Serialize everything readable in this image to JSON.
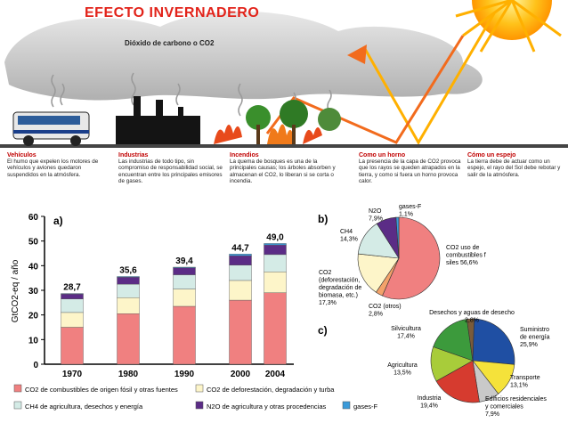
{
  "infographic": {
    "title": "EFECTO INVERNADERO",
    "cloud_label": "Dióxido de carbono o CO2",
    "captions": [
      {
        "title": "Vehículos",
        "text": "El humo que expelen los motores de vehículos y aviones quedaron suspendidos en la atmósfera."
      },
      {
        "title": "Industrias",
        "text": "Las industrias de todo tipo, sin compromiso de responsabilidad social, se encuentran entre los principales emisores de gases."
      },
      {
        "title": "Incendios",
        "text": "La quema de bosques es una de la principales causas; los árboles absorben y almacenan el CO2, lo liberan si se corta o incendia."
      },
      {
        "title": "Como un horno",
        "text": "La presencia de la capa de CO2 provoca que los rayos se queden atrapados en la tierra, y como si fuera un horno provoca calor."
      },
      {
        "title": "Cómo un espejo",
        "text": "La tierra debe de actuar como un espejo, el rayo del Sol debe rebotar y salir de la atmósfera."
      }
    ]
  },
  "colors": {
    "co2_fossil": "#f08080",
    "co2_deforest": "#fdf5c9",
    "ch4": "#d4ebe6",
    "n2o": "#5b2c86",
    "fgas": "#3a9ad9"
  },
  "chart_data": [
    {
      "type": "bar",
      "panel_label": "a)",
      "ylabel": "GtCO2-eq / año",
      "ylim": [
        0,
        60
      ],
      "yticks": [
        "0",
        "10",
        "20",
        "30",
        "40",
        "50",
        "60"
      ],
      "categories": [
        "1970",
        "1980",
        "1990",
        "2000",
        "2004"
      ],
      "totals_labels": [
        "28,7",
        "35,6",
        "39,4",
        "44,7",
        "49,0"
      ],
      "series": [
        {
          "name": "CO2 de combustibles de origen fósil y otras fuentes",
          "values": [
            15.0,
            20.5,
            23.5,
            26.0,
            29.0
          ]
        },
        {
          "name": "CO2 de deforestación, degradación y turba",
          "values": [
            6.0,
            6.5,
            7.0,
            8.0,
            8.5
          ]
        },
        {
          "name": "CH4 de agricultura, desechos y energía",
          "values": [
            5.5,
            5.5,
            5.8,
            6.2,
            7.0
          ]
        },
        {
          "name": "N2O de agricultura y otras procedencias",
          "values": [
            2.0,
            2.8,
            2.8,
            3.8,
            3.9
          ]
        },
        {
          "name": "gases-F",
          "values": [
            0.2,
            0.3,
            0.3,
            0.7,
            0.6
          ]
        }
      ]
    },
    {
      "type": "pie",
      "panel_label": "b)",
      "slices": [
        {
          "label": "CO2 uso de combustibles fósiles",
          "value_label": "56,6%",
          "value": 56.6
        },
        {
          "label": "CO2 (otros)",
          "value_label": "2,8%",
          "value": 2.8
        },
        {
          "label": "CO2 (deforestación, degradación de biomasa, etc.)",
          "value_label": "17,3%",
          "value": 17.3
        },
        {
          "label": "CH4",
          "value_label": "14,3%",
          "value": 14.3
        },
        {
          "label": "N2O",
          "value_label": "7,9%",
          "value": 7.9
        },
        {
          "label": "gases-F",
          "value_label": "1,1%",
          "value": 1.1
        }
      ]
    },
    {
      "type": "pie",
      "panel_label": "c)",
      "slices": [
        {
          "label": "Suministro de energía",
          "value_label": "25,9%",
          "value": 25.9
        },
        {
          "label": "Transporte",
          "value_label": "13,1%",
          "value": 13.1
        },
        {
          "label": "Edificios residenciales y comerciales",
          "value_label": "7,9%",
          "value": 7.9
        },
        {
          "label": "Industria",
          "value_label": "19,4%",
          "value": 19.4
        },
        {
          "label": "Agricultura",
          "value_label": "13,5%",
          "value": 13.5
        },
        {
          "label": "Silvicultura",
          "value_label": "17,4%",
          "value": 17.4
        },
        {
          "label": "Desechos y aguas de desecho",
          "value_label": "2,8%",
          "value": 2.8
        }
      ]
    }
  ]
}
